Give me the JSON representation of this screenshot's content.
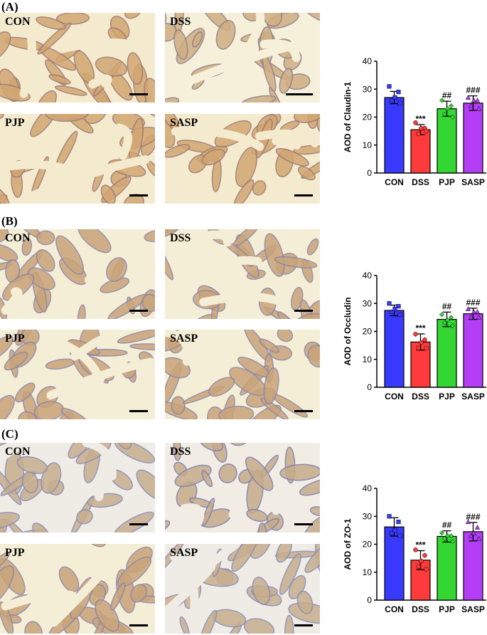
{
  "colors": {
    "CON": "#3a3aff",
    "DSS": "#ff3a3a",
    "PJP": "#33d633",
    "SASP": "#b33ef5",
    "tissue_bg": "#f3ecd4",
    "stain_brown": "#c79a62",
    "stain_blue": "#8f8ab0"
  },
  "panels": [
    {
      "label": "(A)",
      "images": [
        "CON",
        "DSS",
        "PJP",
        "SASP"
      ]
    },
    {
      "label": "(B)",
      "images": [
        "CON",
        "DSS",
        "PJP",
        "SASP"
      ]
    },
    {
      "label": "(C)",
      "images": [
        "CON",
        "DSS",
        "PJP",
        "SASP"
      ]
    }
  ],
  "chart_data": [
    {
      "type": "bar",
      "categories": [
        "CON",
        "DSS",
        "PJP",
        "SASP"
      ],
      "values": [
        27.0,
        15.5,
        23.0,
        25.0
      ],
      "errors": [
        2.2,
        1.8,
        2.7,
        2.6
      ],
      "points": [
        [
          31,
          29,
          26,
          25,
          27
        ],
        [
          18,
          16,
          14,
          15,
          16
        ],
        [
          26,
          24,
          21,
          20,
          23
        ],
        [
          27,
          26,
          24,
          23,
          26
        ]
      ],
      "annotations": [
        "",
        "***",
        "##",
        "###"
      ],
      "ylabel": "AOD of Claudin-1",
      "ylim": [
        0,
        40
      ],
      "yticks": [
        0,
        10,
        20,
        30,
        40
      ]
    },
    {
      "type": "bar",
      "categories": [
        "CON",
        "DSS",
        "PJP",
        "SASP"
      ],
      "values": [
        27.5,
        16.2,
        24.3,
        26.3
      ],
      "errors": [
        1.9,
        2.9,
        2.6,
        2.0
      ],
      "points": [
        [
          30,
          29,
          27,
          26,
          28
        ],
        [
          19,
          17,
          14,
          14,
          16
        ],
        [
          26,
          25,
          23,
          22,
          24
        ],
        [
          28,
          27,
          25,
          25,
          27
        ]
      ],
      "annotations": [
        "",
        "***",
        "##",
        "###"
      ],
      "ylabel": "AOD of Occludin",
      "ylim": [
        0,
        40
      ],
      "yticks": [
        0,
        10,
        20,
        30,
        40
      ]
    },
    {
      "type": "bar",
      "categories": [
        "CON",
        "DSS",
        "PJP",
        "SASP"
      ],
      "values": [
        26.2,
        14.3,
        22.8,
        24.5
      ],
      "errors": [
        3.3,
        3.4,
        2.0,
        3.3
      ],
      "points": [
        [
          30,
          28,
          24,
          23,
          25
        ],
        [
          18,
          16,
          12,
          11,
          14
        ],
        [
          24,
          23,
          22,
          21,
          23
        ],
        [
          28,
          26,
          23,
          22,
          24
        ]
      ],
      "annotations": [
        "",
        "***",
        "##",
        "###"
      ],
      "ylabel": "AOD of ZO-1",
      "ylim": [
        0,
        40
      ],
      "yticks": [
        0,
        10,
        20,
        30,
        40
      ]
    }
  ]
}
